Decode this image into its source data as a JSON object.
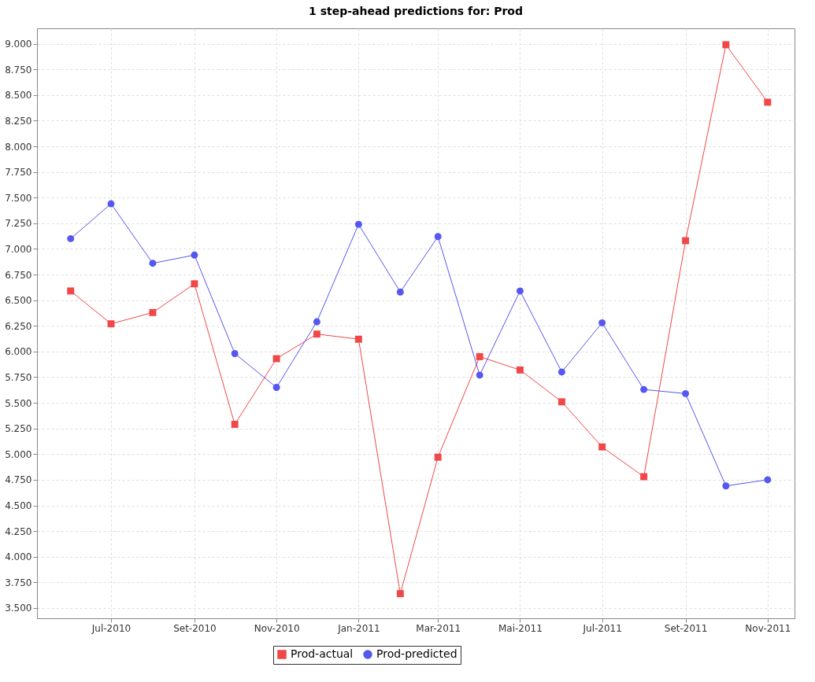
{
  "chart_data": {
    "type": "line",
    "title": "1 step-ahead predictions for: Prod",
    "x": [
      "2010-06",
      "2010-07",
      "2010-08",
      "2010-09",
      "2010-10",
      "2010-11",
      "2010-12",
      "2011-01",
      "2011-02",
      "2011-03",
      "2011-04",
      "2011-05",
      "2011-06",
      "2011-07",
      "2011-08",
      "2011-09",
      "2011-10",
      "2011-11"
    ],
    "series": [
      {
        "name": "Prod-actual",
        "color": "#f04848",
        "marker": "square",
        "values": [
          6590,
          6270,
          6380,
          6660,
          5290,
          5930,
          6170,
          6120,
          3640,
          4970,
          5950,
          5820,
          5510,
          5070,
          4780,
          7080,
          8990,
          8430
        ]
      },
      {
        "name": "Prod-predicted",
        "color": "#5656f0",
        "marker": "circle",
        "values": [
          7100,
          7440,
          6860,
          6940,
          5980,
          5650,
          6290,
          7240,
          6580,
          7120,
          5770,
          6590,
          5800,
          6280,
          5630,
          5590,
          4690,
          4750
        ]
      }
    ],
    "xlim": [
      "2010-05-07",
      "2011-11-21"
    ],
    "xticks": [
      {
        "value": "2010-07",
        "label": "Jul-2010"
      },
      {
        "value": "2010-09",
        "label": "Set-2010"
      },
      {
        "value": "2010-11",
        "label": "Nov-2010"
      },
      {
        "value": "2011-01",
        "label": "Jan-2011"
      },
      {
        "value": "2011-03",
        "label": "Mar-2011"
      },
      {
        "value": "2011-05",
        "label": "Mai-2011"
      },
      {
        "value": "2011-07",
        "label": "Jul-2011"
      },
      {
        "value": "2011-09",
        "label": "Set-2011"
      },
      {
        "value": "2011-11",
        "label": "Nov-2011"
      }
    ],
    "ylim": [
      3400,
      9150
    ],
    "yticks": [
      {
        "value": 3500,
        "label": "3.500"
      },
      {
        "value": 3750,
        "label": "3.750"
      },
      {
        "value": 4000,
        "label": "4.000"
      },
      {
        "value": 4250,
        "label": "4.250"
      },
      {
        "value": 4500,
        "label": "4.500"
      },
      {
        "value": 4750,
        "label": "4.750"
      },
      {
        "value": 5000,
        "label": "5.000"
      },
      {
        "value": 5250,
        "label": "5.250"
      },
      {
        "value": 5500,
        "label": "5.500"
      },
      {
        "value": 5750,
        "label": "5.750"
      },
      {
        "value": 6000,
        "label": "6.000"
      },
      {
        "value": 6250,
        "label": "6.250"
      },
      {
        "value": 6500,
        "label": "6.500"
      },
      {
        "value": 6750,
        "label": "6.750"
      },
      {
        "value": 7000,
        "label": "7.000"
      },
      {
        "value": 7250,
        "label": "7.250"
      },
      {
        "value": 7500,
        "label": "7.500"
      },
      {
        "value": 7750,
        "label": "7.750"
      },
      {
        "value": 8000,
        "label": "8.000"
      },
      {
        "value": 8250,
        "label": "8.250"
      },
      {
        "value": 8500,
        "label": "8.500"
      },
      {
        "value": 8750,
        "label": "8.750"
      },
      {
        "value": 9000,
        "label": "9.000"
      }
    ],
    "grid": true,
    "legend": "bottom"
  }
}
